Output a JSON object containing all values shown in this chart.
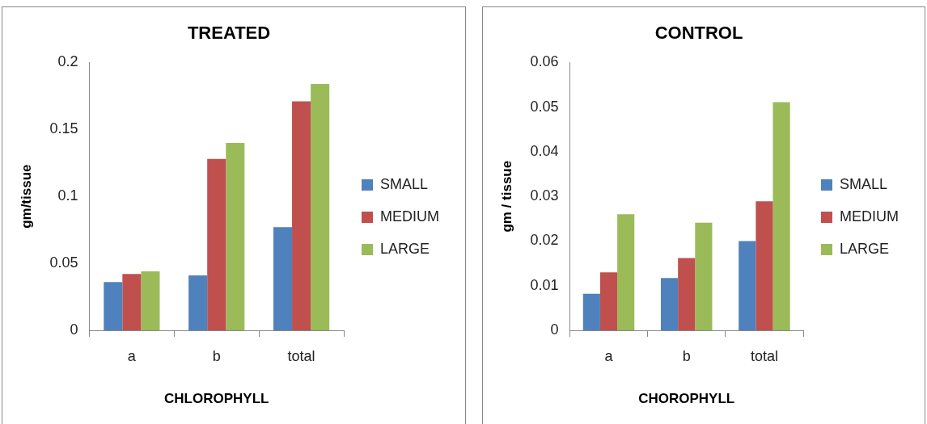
{
  "chart_data": [
    {
      "type": "bar",
      "title": "TREATED",
      "xlabel": "CHLOROPHYLL",
      "ylabel": "gm/tissue",
      "categories": [
        "a",
        "b",
        "total"
      ],
      "series": [
        {
          "name": "SMALL",
          "color": "#4f81bd",
          "values": [
            0.036,
            0.041,
            0.077
          ]
        },
        {
          "name": "MEDIUM",
          "color": "#c0504d",
          "values": [
            0.042,
            0.128,
            0.171
          ]
        },
        {
          "name": "LARGE",
          "color": "#9bbb59",
          "values": [
            0.044,
            0.14,
            0.184
          ]
        }
      ],
      "ylim": [
        0,
        0.2
      ],
      "yticks": [
        0,
        0.05,
        0.1,
        0.15,
        0.2
      ],
      "grid": false,
      "legend": "right"
    },
    {
      "type": "bar",
      "title": "CONTROL",
      "xlabel": "CHOROPHYLL",
      "ylabel": "gm / tissue",
      "categories": [
        "a",
        "b",
        "total"
      ],
      "series": [
        {
          "name": "SMALL",
          "color": "#4f81bd",
          "values": [
            0.0082,
            0.0117,
            0.02
          ]
        },
        {
          "name": "MEDIUM",
          "color": "#c0504d",
          "values": [
            0.013,
            0.0162,
            0.0289
          ]
        },
        {
          "name": "LARGE",
          "color": "#9bbb59",
          "values": [
            0.026,
            0.0241,
            0.0511
          ]
        }
      ],
      "ylim": [
        0,
        0.06
      ],
      "yticks": [
        0,
        0.01,
        0.02,
        0.03,
        0.04,
        0.05,
        0.06
      ],
      "grid": false,
      "legend": "right"
    }
  ]
}
